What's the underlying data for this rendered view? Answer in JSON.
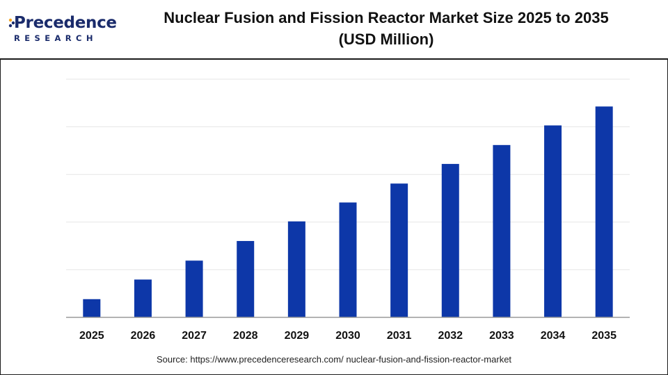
{
  "brand": {
    "name": "Precedence",
    "sub": "RESEARCH",
    "color": "#1a2b6b",
    "accent": "#f5a623"
  },
  "title_line1": "Nuclear Fusion and Fission Reactor Market Size 2025 to 2035",
  "title_line2": "(USD Million)",
  "source": "Source: https://www.precedenceresearch.com/ nuclear-fusion-and-fission-reactor-market",
  "chart_data": {
    "type": "bar",
    "categories": [
      "2025",
      "2026",
      "2027",
      "2028",
      "2029",
      "2030",
      "2031",
      "2032",
      "2033",
      "2034",
      "2035"
    ],
    "values": [
      26,
      54,
      81,
      109,
      137,
      164,
      191,
      219,
      246,
      274,
      301
    ],
    "ylim": [
      0,
      340
    ],
    "grid": true,
    "bar_color": "#0d37a8",
    "title": "Nuclear Fusion and Fission Reactor Market Size 2025 to 2035 (USD Million)",
    "xlabel": "",
    "ylabel": ""
  }
}
